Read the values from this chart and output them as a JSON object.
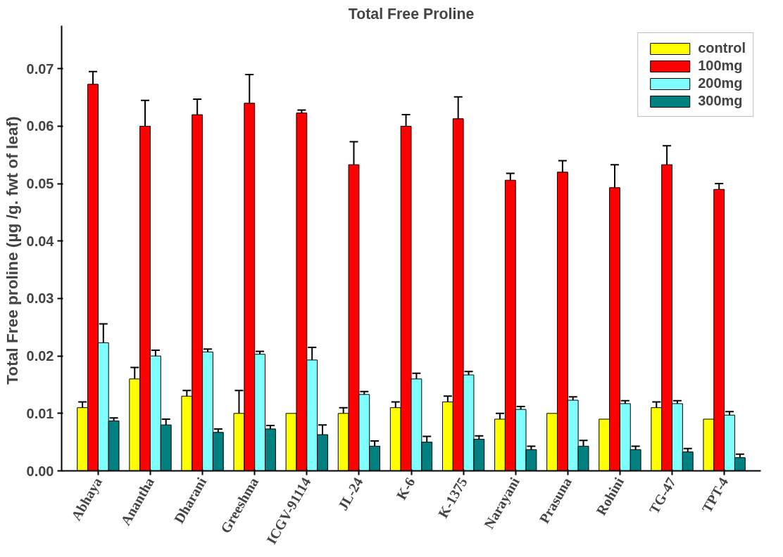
{
  "chart_data": {
    "type": "bar",
    "title": "Total Free Proline",
    "ylabel": "Total  Free proline (µg /g. fwt of leaf)",
    "categories": [
      "Abhaya",
      "Anantha",
      "Dharani",
      "Greeshma",
      "ICGV-91114",
      "JL-24",
      "K-6",
      "K-1375",
      "Narayani",
      "Prasuna",
      "Rohini",
      "TG-47",
      "TPT-4"
    ],
    "series": [
      {
        "name": "control",
        "color": "#ffff00",
        "values": [
          0.011,
          0.016,
          0.013,
          0.01,
          0.01,
          0.01,
          0.011,
          0.012,
          0.009,
          0.01,
          0.009,
          0.011,
          0.009
        ],
        "errors": [
          0.001,
          0.002,
          0.001,
          0.004,
          null,
          0.001,
          0.001,
          0.001,
          0.001,
          null,
          null,
          0.001,
          null
        ]
      },
      {
        "name": "100mg",
        "color": "#ff0000",
        "values": [
          0.0673,
          0.06,
          0.062,
          0.064,
          0.0623,
          0.0533,
          0.06,
          0.0613,
          0.0506,
          0.052,
          0.0493,
          0.0533,
          0.049
        ],
        "errors": [
          0.0022,
          0.0045,
          0.0027,
          0.005,
          0.0005,
          0.004,
          0.002,
          0.0038,
          0.0012,
          0.002,
          0.004,
          0.0033,
          0.001
        ]
      },
      {
        "name": "200mg",
        "color": "#80ffff",
        "values": [
          0.0223,
          0.02,
          0.0207,
          0.0203,
          0.0193,
          0.0133,
          0.016,
          0.0167,
          0.0107,
          0.0123,
          0.0117,
          0.0117,
          0.0097
        ],
        "errors": [
          0.0033,
          0.001,
          0.0005,
          0.0005,
          0.0022,
          0.0005,
          0.001,
          0.0006,
          0.0005,
          0.0006,
          0.0005,
          0.0005,
          0.0006
        ]
      },
      {
        "name": "300mg",
        "color": "#008080",
        "values": [
          0.0087,
          0.008,
          0.0067,
          0.0073,
          0.0063,
          0.0043,
          0.005,
          0.0055,
          0.0037,
          0.0043,
          0.0037,
          0.0033,
          0.0023
        ],
        "errors": [
          0.0005,
          0.001,
          0.0006,
          0.0006,
          0.0017,
          0.0009,
          0.001,
          0.0006,
          0.0006,
          0.001,
          0.0006,
          0.0006,
          0.0006
        ]
      }
    ],
    "ylim": [
      0,
      0.0775
    ],
    "yticks": [
      {
        "value": 0,
        "label": "0.00"
      },
      {
        "value": 0.01,
        "label": "0.01"
      },
      {
        "value": 0.02,
        "label": "0.02"
      },
      {
        "value": 0.03,
        "label": "0.03"
      },
      {
        "value": 0.04,
        "label": "0.04"
      },
      {
        "value": 0.05,
        "label": "0.05"
      },
      {
        "value": 0.06,
        "label": "0.06"
      },
      {
        "value": 0.07,
        "label": "0.07"
      }
    ],
    "legend": "top right",
    "grid": false
  }
}
